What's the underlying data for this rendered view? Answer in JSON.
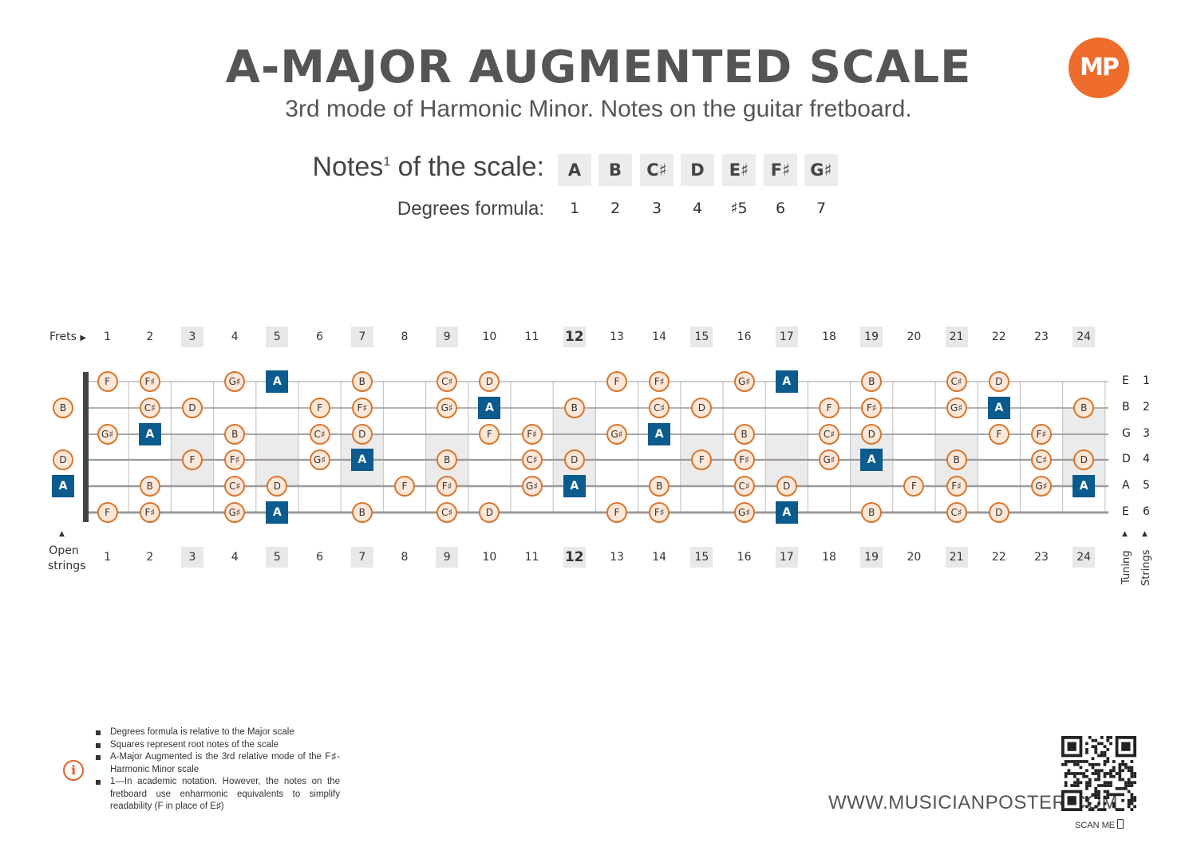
{
  "header": {
    "title": "A-MAJOR AUGMENTED SCALE",
    "subtitle": "3rd mode of Harmonic Minor. Notes on the guitar fretboard.",
    "logo_text": "MP"
  },
  "scale": {
    "notes_label": "Notes",
    "notes_label_sup": "1",
    "notes_label_suffix": " of the scale:",
    "degrees_label": "Degrees formula:",
    "notes": [
      "A",
      "B",
      "C♯",
      "D",
      "E♯",
      "F♯",
      "G♯"
    ],
    "degrees": [
      "1",
      "2",
      "3",
      "4",
      "♯5",
      "6",
      "7"
    ]
  },
  "fretboard": {
    "frets_label": "Frets",
    "frets_arrow": "▶",
    "fret_numbers": [
      "1",
      "2",
      "3",
      "4",
      "5",
      "6",
      "7",
      "8",
      "9",
      "10",
      "11",
      "12",
      "13",
      "14",
      "15",
      "16",
      "17",
      "18",
      "19",
      "20",
      "21",
      "22",
      "23",
      "24"
    ],
    "highlighted_frets": [
      3,
      5,
      7,
      9,
      12,
      15,
      17,
      19,
      21,
      24
    ],
    "bold_fret": 12,
    "open_strings_label_line1": "Open",
    "open_strings_label_line2": "strings",
    "up_arrow": "▲",
    "tuning_label": "Tuning",
    "strings_label": "Strings",
    "strings": [
      {
        "tuning": "E",
        "number": "1",
        "open": null,
        "notes": {
          "1": "F",
          "2": "F♯",
          "4": "G♯",
          "5": "A",
          "7": "B",
          "9": "C♯",
          "10": "D",
          "13": "F",
          "14": "F♯",
          "16": "G♯",
          "17": "A",
          "19": "B",
          "21": "C♯",
          "22": "D"
        }
      },
      {
        "tuning": "B",
        "number": "2",
        "open": "B",
        "notes": {
          "2": "C♯",
          "3": "D",
          "6": "F",
          "7": "F♯",
          "9": "G♯",
          "10": "A",
          "12": "B",
          "14": "C♯",
          "15": "D",
          "18": "F",
          "19": "F♯",
          "21": "G♯",
          "22": "A",
          "24": "B"
        }
      },
      {
        "tuning": "G",
        "number": "3",
        "open": null,
        "notes": {
          "1": "G♯",
          "2": "A",
          "4": "B",
          "6": "C♯",
          "7": "D",
          "10": "F",
          "11": "F♯",
          "13": "G♯",
          "14": "A",
          "16": "B",
          "18": "C♯",
          "19": "D",
          "22": "F",
          "23": "F♯"
        }
      },
      {
        "tuning": "D",
        "number": "4",
        "open": "D",
        "notes": {
          "3": "F",
          "4": "F♯",
          "6": "G♯",
          "7": "A",
          "9": "B",
          "11": "C♯",
          "12": "D",
          "15": "F",
          "16": "F♯",
          "18": "G♯",
          "19": "A",
          "21": "B",
          "23": "C♯",
          "24": "D"
        }
      },
      {
        "tuning": "A",
        "number": "5",
        "open": "A",
        "notes": {
          "2": "B",
          "4": "C♯",
          "5": "D",
          "8": "F",
          "9": "F♯",
          "11": "G♯",
          "12": "A",
          "14": "B",
          "16": "C♯",
          "17": "D",
          "20": "F",
          "21": "F♯",
          "23": "G♯",
          "24": "A"
        }
      },
      {
        "tuning": "E",
        "number": "6",
        "open": null,
        "notes": {
          "1": "F",
          "2": "F♯",
          "4": "G♯",
          "5": "A",
          "7": "B",
          "9": "C♯",
          "10": "D",
          "13": "F",
          "14": "F♯",
          "16": "G♯",
          "17": "A",
          "19": "B",
          "21": "C♯",
          "22": "D"
        }
      }
    ]
  },
  "footnotes": [
    "Degrees formula is relative to the Major scale",
    "Squares represent root notes of the scale",
    "A-Major Augmented is the 3rd relative mode of the F♯-Harmonic Minor scale",
    "1—In academic notation. However, the notes on the fretboard use enharmonic equivalents to simplify readability (F in place of E♯)"
  ],
  "footer": {
    "website": "WWW.MUSICIANPOSTER.COM",
    "scan_me": "SCAN ME"
  },
  "colors": {
    "root_fill": "#0c5b8e",
    "note_fill": "#fde7d8",
    "note_border": "#d8762e",
    "logo": "#ee6c2c",
    "title": "#555555"
  }
}
